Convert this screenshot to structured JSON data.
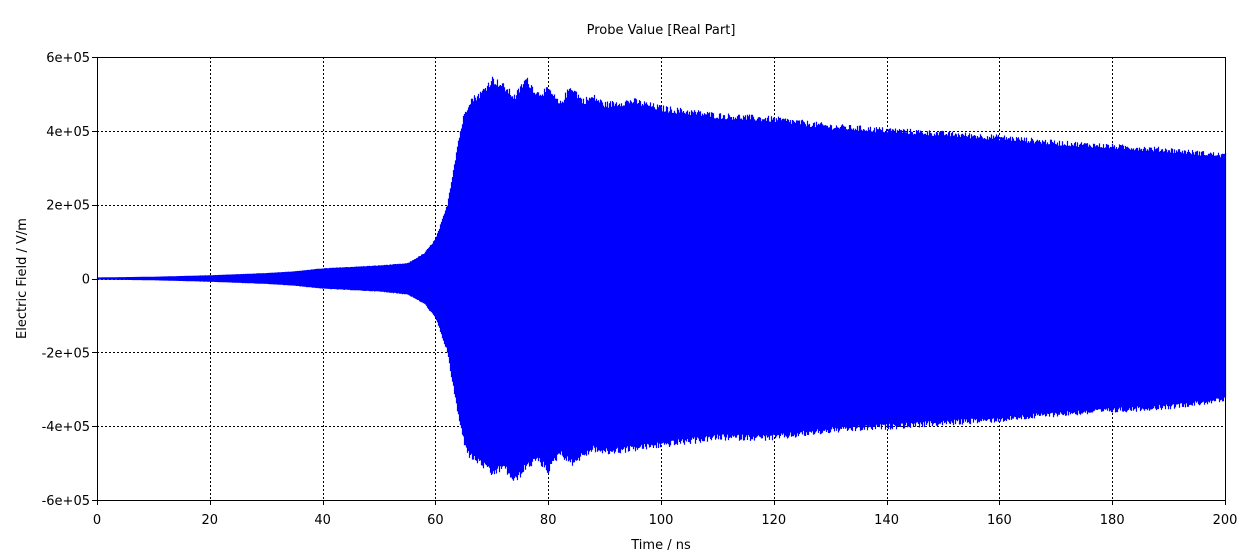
{
  "chart_data": {
    "type": "line",
    "title": "Probe Value [Real Part]",
    "xlabel": "Time / ns",
    "ylabel": "Electric Field / V/m",
    "xlim": [
      0,
      200
    ],
    "ylim": [
      -600000,
      600000
    ],
    "x_ticks": [
      {
        "value": 0,
        "label": "0"
      },
      {
        "value": 20,
        "label": "20"
      },
      {
        "value": 40,
        "label": "40"
      },
      {
        "value": 60,
        "label": "60"
      },
      {
        "value": 80,
        "label": "80"
      },
      {
        "value": 100,
        "label": "100"
      },
      {
        "value": 120,
        "label": "120"
      },
      {
        "value": 140,
        "label": "140"
      },
      {
        "value": 160,
        "label": "160"
      },
      {
        "value": 180,
        "label": "180"
      },
      {
        "value": 200,
        "label": "200"
      }
    ],
    "y_ticks": [
      {
        "value": 600000,
        "label": "6e+05"
      },
      {
        "value": 400000,
        "label": "4e+05"
      },
      {
        "value": 200000,
        "label": "2e+05"
      },
      {
        "value": 0,
        "label": "0"
      },
      {
        "value": -200000,
        "label": "-2e+05"
      },
      {
        "value": -400000,
        "label": "-4e+05"
      },
      {
        "value": -600000,
        "label": "-6e+05"
      }
    ],
    "grid": true,
    "grid_style": "dotted",
    "legend": "none",
    "series": [
      {
        "color": "#0000ff",
        "style": "filled-oscillation-envelope",
        "upper_envelope": {
          "x": [
            0,
            5,
            10,
            15,
            20,
            25,
            30,
            35,
            40,
            45,
            50,
            55,
            58,
            60,
            62,
            64,
            65,
            66,
            68,
            70,
            72,
            74,
            76,
            78,
            80,
            82,
            84,
            86,
            88,
            90,
            95,
            100,
            110,
            120,
            130,
            140,
            150,
            160,
            170,
            180,
            190,
            200
          ],
          "y": [
            3000,
            4000,
            5000,
            7000,
            9000,
            12000,
            15000,
            20000,
            28000,
            32000,
            36000,
            42000,
            70000,
            110000,
            200000,
            380000,
            450000,
            490000,
            510000,
            550000,
            530000,
            500000,
            550000,
            510000,
            520000,
            480000,
            530000,
            490000,
            500000,
            480000,
            490000,
            470000,
            450000,
            440000,
            420000,
            410000,
            400000,
            390000,
            375000,
            365000,
            355000,
            340000
          ]
        },
        "lower_envelope": {
          "x": [
            0,
            5,
            10,
            15,
            20,
            25,
            30,
            35,
            40,
            45,
            50,
            55,
            58,
            60,
            62,
            64,
            65,
            66,
            68,
            70,
            72,
            74,
            76,
            78,
            80,
            82,
            84,
            86,
            88,
            90,
            95,
            100,
            110,
            120,
            130,
            140,
            150,
            160,
            170,
            180,
            190,
            200
          ],
          "y": [
            -3000,
            -4000,
            -5000,
            -7000,
            -9000,
            -12000,
            -15000,
            -20000,
            -28000,
            -32000,
            -36000,
            -44000,
            -70000,
            -110000,
            -200000,
            -380000,
            -450000,
            -490000,
            -510000,
            -540000,
            -520000,
            -560000,
            -520000,
            -500000,
            -530000,
            -480000,
            -510000,
            -490000,
            -470000,
            -480000,
            -470000,
            -460000,
            -440000,
            -440000,
            -420000,
            -410000,
            -400000,
            -390000,
            -375000,
            -365000,
            -355000,
            -335000
          ]
        }
      }
    ]
  }
}
